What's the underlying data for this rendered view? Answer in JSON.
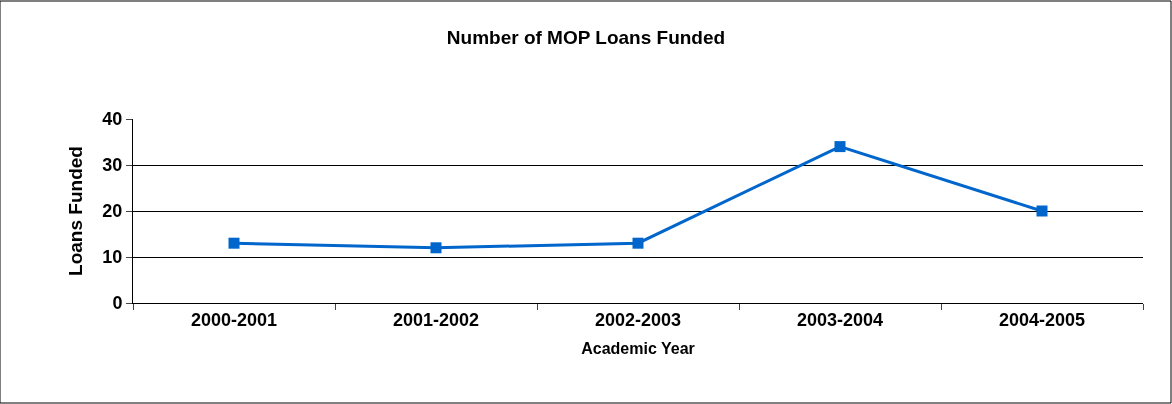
{
  "chart_data": {
    "type": "line",
    "title": "Number of MOP Loans Funded",
    "xlabel": "Academic Year",
    "ylabel": "Loans Funded",
    "categories": [
      "2000-2001",
      "2001-2002",
      "2002-2003",
      "2003-2004",
      "2004-2005"
    ],
    "series": [
      {
        "color": "#0066cc",
        "values": [
          13,
          12,
          13,
          34,
          20
        ]
      }
    ],
    "ylim": [
      0,
      40
    ],
    "yticks": [
      0,
      10,
      20,
      30,
      40
    ],
    "grid": "y",
    "marker": "square",
    "line_style": "solid"
  }
}
